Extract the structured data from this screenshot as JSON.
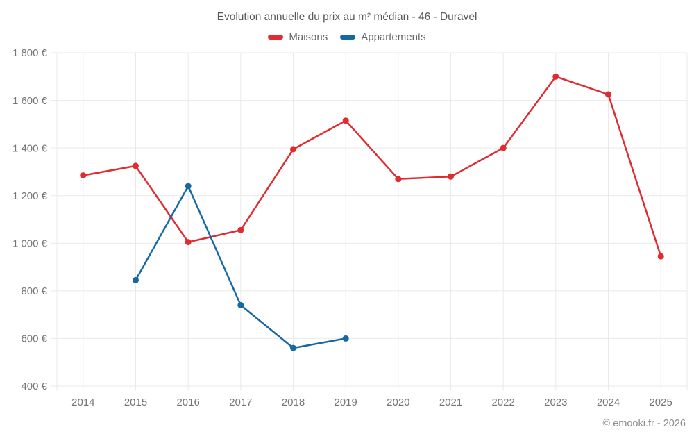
{
  "header": {
    "title": "Evolution annuelle du prix au m² médian - 46 - Duravel"
  },
  "legend": {
    "items": [
      {
        "label": "Maisons",
        "color": "#e02b30"
      },
      {
        "label": "Appartements",
        "color": "#1569a2"
      }
    ]
  },
  "footer": {
    "credit": "© emooki.fr - 2026"
  },
  "colors": {
    "maisons": "#e02b30",
    "appartements": "#1569a2",
    "grid": "#e9e9e9",
    "tick_text": "#757575",
    "title_text": "#595959",
    "legend_text": "#666666",
    "footer_text": "#8c8c8c",
    "background": "#ffffff"
  },
  "chart_data": {
    "type": "line",
    "title": "Evolution annuelle du prix au m² médian - 46 - Duravel",
    "categories": [
      "2014",
      "2015",
      "2016",
      "2017",
      "2018",
      "2019",
      "2020",
      "2021",
      "2022",
      "2023",
      "2024",
      "2025"
    ],
    "series": [
      {
        "name": "Maisons",
        "color": "#e02b30",
        "values": [
          1285,
          1325,
          1005,
          1055,
          1395,
          1515,
          1270,
          1280,
          1400,
          1700,
          1625,
          945
        ]
      },
      {
        "name": "Appartements",
        "color": "#1569a2",
        "values": [
          null,
          845,
          1240,
          740,
          560,
          600,
          null,
          null,
          null,
          null,
          null,
          null
        ]
      }
    ],
    "xlabel": "",
    "ylabel": "",
    "unit": "€",
    "ylim": [
      400,
      1800
    ],
    "ytick_step": 200,
    "ytick_labels": [
      "400 €",
      "600 €",
      "800 €",
      "1 000 €",
      "1 200 €",
      "1 400 €",
      "1 600 €",
      "1 800 €"
    ],
    "grid": true,
    "legend_position": "top",
    "marker": "circle",
    "marker_radius": 4.5,
    "line_width": 2.5
  }
}
